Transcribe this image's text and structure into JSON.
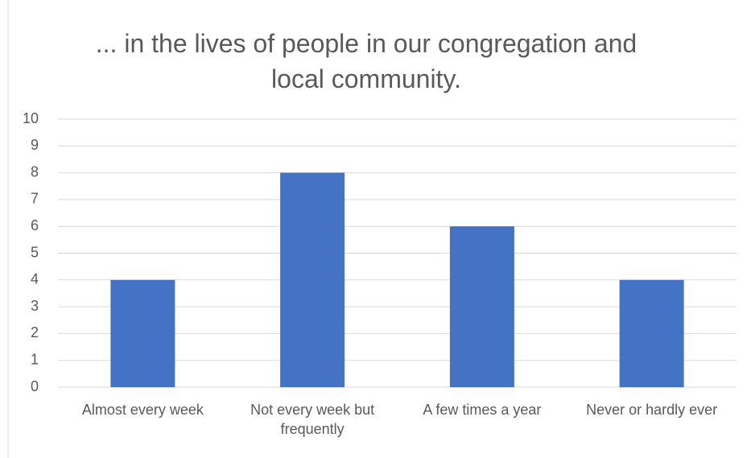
{
  "chart_data": {
    "type": "bar",
    "title": "... in the lives of people in our congregation and local community.",
    "categories": [
      "Almost every week",
      "Not every week but frequently",
      "A few times a year",
      "Never or hardly ever"
    ],
    "values": [
      4,
      8,
      6,
      4
    ],
    "color": "#4472c4",
    "ylim": [
      0,
      10
    ],
    "yticks": [
      0,
      1,
      2,
      3,
      4,
      5,
      6,
      7,
      8,
      9,
      10
    ],
    "grid": true
  }
}
